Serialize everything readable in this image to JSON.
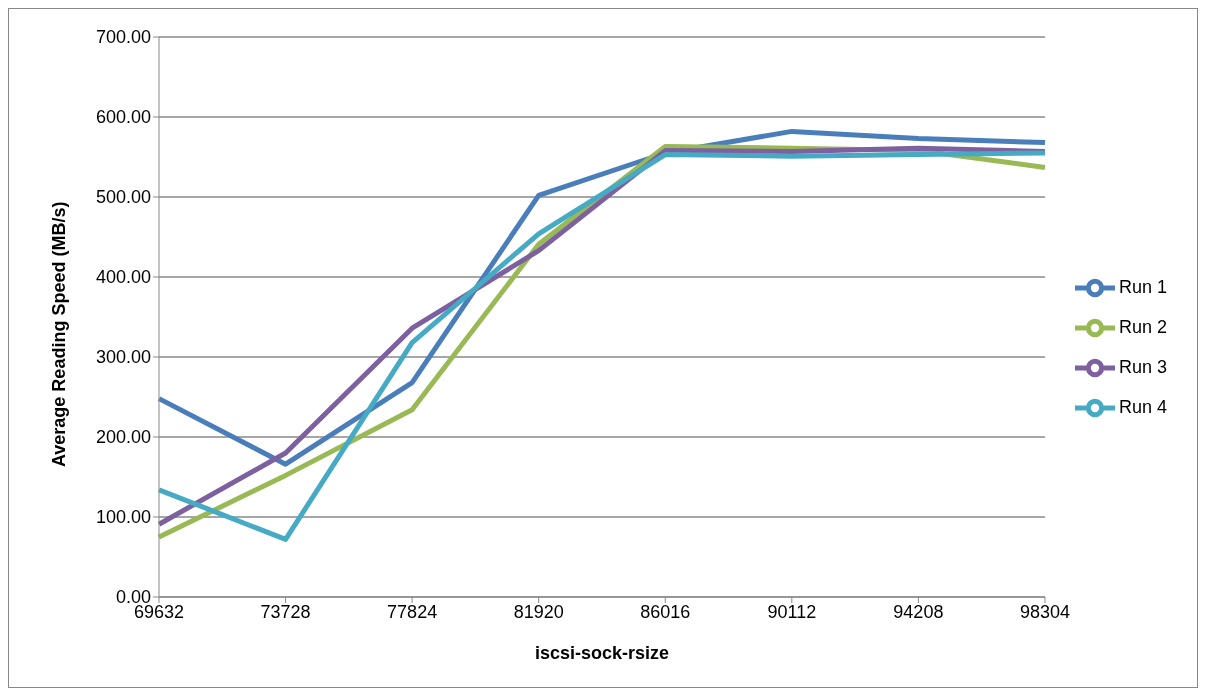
{
  "chart_data": {
    "type": "line",
    "xlabel": "iscsi-sock-rsize",
    "ylabel": "Average Reading Speed (MB/s)",
    "categories": [
      "69632",
      "73728",
      "77824",
      "81920",
      "86016",
      "90112",
      "94208",
      "98304"
    ],
    "series": [
      {
        "name": "Run 1",
        "color": "#4a7ebb",
        "values": [
          248,
          166,
          268,
          502,
          555,
          582,
          573,
          568
        ]
      },
      {
        "name": "Run 2",
        "color": "#98b954",
        "values": [
          75,
          152,
          234,
          441,
          563,
          561,
          558,
          537
        ]
      },
      {
        "name": "Run 3",
        "color": "#7d60a0",
        "values": [
          91,
          180,
          336,
          433,
          558,
          557,
          561,
          557
        ]
      },
      {
        "name": "Run 4",
        "color": "#46aac5",
        "values": [
          134,
          72,
          318,
          454,
          553,
          551,
          553,
          555
        ]
      }
    ],
    "ylim": [
      0,
      700
    ],
    "yticks": [
      {
        "value": 0,
        "label": "0.00"
      },
      {
        "value": 100,
        "label": "100.00"
      },
      {
        "value": 200,
        "label": "200.00"
      },
      {
        "value": 300,
        "label": "300.00"
      },
      {
        "value": 400,
        "label": "400.00"
      },
      {
        "value": 500,
        "label": "500.00"
      },
      {
        "value": 600,
        "label": "600.00"
      },
      {
        "value": 700,
        "label": "700.00"
      }
    ],
    "grid": "y",
    "legend": "right",
    "marker": "none",
    "line_style": "solid"
  }
}
